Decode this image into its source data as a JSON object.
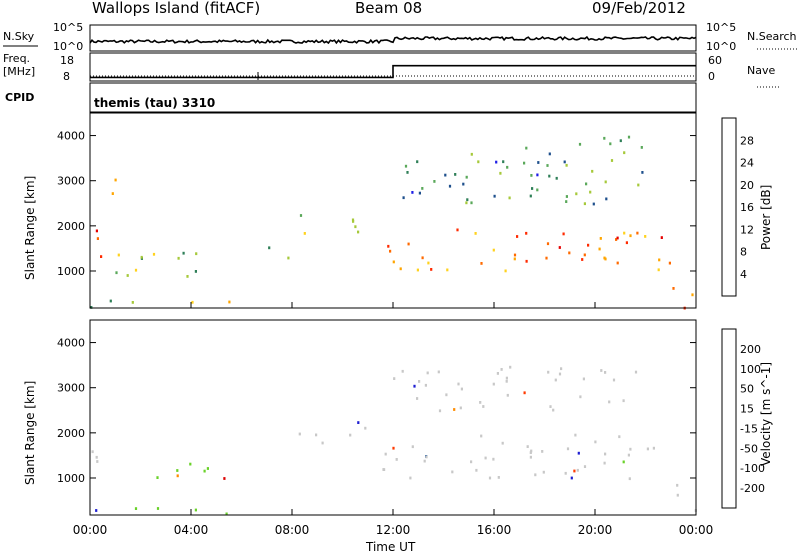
{
  "header": {
    "site": "Wallops Island (fitACF)",
    "beam": "Beam 08",
    "date": "09/Feb/2012"
  },
  "noise_panel": {
    "left_label": "N.Sky",
    "right_label": "N.Search",
    "left_ticks": [
      "10^5",
      "10^0"
    ],
    "right_ticks": [
      "10^5",
      "10^0"
    ]
  },
  "freq_panel": {
    "left_label_1": "Freq.",
    "left_label_2": "[MHz]",
    "right_label": "Nave",
    "left_ticks": [
      "18",
      "8"
    ],
    "right_ticks": [
      "60",
      "0"
    ],
    "freq_steps": [
      {
        "t": 0,
        "v": 10
      },
      {
        "t": 12,
        "v": 16.5
      },
      {
        "t": 24,
        "v": 16.5
      }
    ]
  },
  "cpid": {
    "label": "CPID",
    "value": "themis (tau) 3310"
  },
  "x_axis": {
    "title": "Time UT",
    "ticks": [
      "00:00",
      "04:00",
      "08:00",
      "12:00",
      "16:00",
      "20:00",
      "00:00"
    ]
  },
  "power_panel": {
    "ylabel": "Slant Range [km]",
    "yticks": [
      "4000",
      "3000",
      "2000",
      "1000"
    ],
    "colorbar_label": "Power [dB]",
    "colorbar_ticks": [
      "28",
      "24",
      "20",
      "16",
      "12",
      "8",
      "4"
    ],
    "colors": [
      "#1e1ee6",
      "#1e4f8c",
      "#2f7f58",
      "#5aa85a",
      "#a6c93a",
      "#ffd21e",
      "#ffa500",
      "#ff6a00",
      "#ff2a00",
      "#e60000"
    ]
  },
  "velocity_panel": {
    "ylabel": "Slant Range [km]",
    "yticks": [
      "4000",
      "3000",
      "2000",
      "1000"
    ],
    "colorbar_label": "Velocity [m s^-1]",
    "colorbar_ticks": [
      "200",
      "100",
      "50",
      "15",
      "-15",
      "-50",
      "-100",
      "-200"
    ],
    "colors": [
      "#1e1ed2",
      "#1e5aa0",
      "#2a8a3a",
      "#6ad22a",
      "#c8c8c8",
      "#f0c81e",
      "#ff8c00",
      "#ff3a00",
      "#dc0000"
    ]
  },
  "chart_data": {
    "type": "heatmap",
    "x_range_hours": [
      0,
      24
    ],
    "y_range_km": [
      180,
      4500
    ],
    "power_regions": [
      {
        "t0": 0,
        "t1": 1,
        "r0": 1200,
        "r1": 2000,
        "level": 0.8
      },
      {
        "t0": 0.8,
        "t1": 1.3,
        "r0": 2500,
        "r1": 3300,
        "level": 0.5
      },
      {
        "t0": 1,
        "t1": 5.5,
        "r0": 900,
        "r1": 1600,
        "level": 0.35
      },
      {
        "t0": 7,
        "t1": 8,
        "r0": 1200,
        "r1": 1700,
        "level": 0.3
      },
      {
        "t0": 8,
        "t1": 11,
        "r0": 1800,
        "r1": 2300,
        "level": 0.3
      },
      {
        "t0": 11.5,
        "t1": 23,
        "r0": 1000,
        "r1": 2000,
        "level": 0.75
      },
      {
        "t0": 12,
        "t1": 22,
        "r0": 2500,
        "r1": 4000,
        "level": 0.25
      },
      {
        "t0": 23,
        "t1": 24,
        "r0": 200,
        "r1": 900,
        "level": 0.85
      },
      {
        "t0": 0,
        "t1": 6,
        "r0": 200,
        "r1": 400,
        "level": 0.45
      }
    ],
    "velocity_regions": [
      {
        "t0": 0,
        "t1": 1,
        "r0": 1200,
        "r1": 2000,
        "cls": 4
      },
      {
        "t0": 2,
        "t1": 5.5,
        "r0": 900,
        "r1": 1400,
        "cls": 3
      },
      {
        "t0": 0,
        "t1": 6,
        "r0": 200,
        "r1": 400,
        "cls": 3
      },
      {
        "t0": 8,
        "t1": 11,
        "r0": 1800,
        "r1": 2300,
        "cls": 4
      },
      {
        "t0": 11.5,
        "t1": 23,
        "r0": 1000,
        "r1": 2000,
        "cls": 4
      },
      {
        "t0": 12,
        "t1": 22,
        "r0": 2500,
        "r1": 3500,
        "cls": 4
      },
      {
        "t0": 23,
        "t1": 24,
        "r0": 200,
        "r1": 900,
        "cls": 4
      }
    ]
  }
}
